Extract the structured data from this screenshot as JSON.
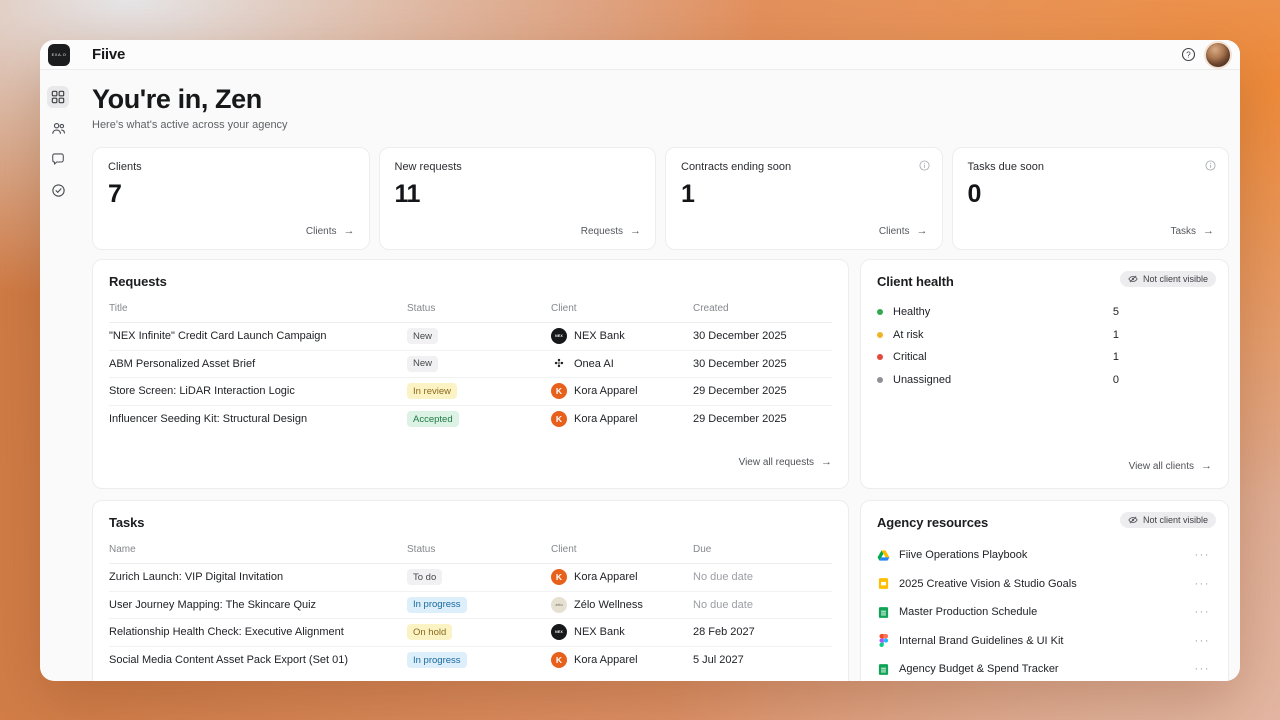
{
  "topbar": {
    "brand": "Fiive",
    "logo_text": "EXA.O"
  },
  "header": {
    "title": "You're in, Zen",
    "subtitle": "Here's what's active across your agency"
  },
  "stats": [
    {
      "label": "Clients",
      "value": "7",
      "link": "Clients",
      "info": false
    },
    {
      "label": "New requests",
      "value": "11",
      "link": "Requests",
      "info": false
    },
    {
      "label": "Contracts ending soon",
      "value": "1",
      "link": "Clients",
      "info": true
    },
    {
      "label": "Tasks due soon",
      "value": "0",
      "link": "Tasks",
      "info": true
    }
  ],
  "requests": {
    "title": "Requests",
    "columns": [
      "Title",
      "Status",
      "Client",
      "Created"
    ],
    "rows": [
      {
        "title": "\"NEX Infinite\" Credit Card Launch Campaign",
        "status": "New",
        "status_type": "neutral",
        "client": "NEX Bank",
        "client_avatar": "nex",
        "date": "30 December 2025"
      },
      {
        "title": "ABM Personalized Asset Brief",
        "status": "New",
        "status_type": "neutral",
        "client": "Onea AI",
        "client_avatar": "onea",
        "date": "30 December 2025"
      },
      {
        "title": "Store Screen: LiDAR Interaction Logic",
        "status": "In review",
        "status_type": "yellow",
        "client": "Kora Apparel",
        "client_avatar": "kora",
        "date": "29 December 2025"
      },
      {
        "title": "Influencer Seeding Kit: Structural Design",
        "status": "Accepted",
        "status_type": "green",
        "client": "Kora Apparel",
        "client_avatar": "kora",
        "date": "29 December 2025"
      }
    ],
    "footer_link": "View all requests"
  },
  "client_health": {
    "title": "Client health",
    "badge": "Not client visible",
    "items": [
      {
        "label": "Healthy",
        "count": "5",
        "color": "#33a852"
      },
      {
        "label": "At risk",
        "count": "1",
        "color": "#f0b429"
      },
      {
        "label": "Critical",
        "count": "1",
        "color": "#e5473c"
      },
      {
        "label": "Unassigned",
        "count": "0",
        "color": "#8e9196"
      }
    ],
    "footer_link": "View all clients"
  },
  "tasks": {
    "title": "Tasks",
    "columns": [
      "Name",
      "Status",
      "Client",
      "Due"
    ],
    "rows": [
      {
        "title": "Zurich Launch: VIP Digital Invitation",
        "status": "To do",
        "status_type": "neutral",
        "client": "Kora Apparel",
        "client_avatar": "kora",
        "date": "No due date",
        "date_muted": true
      },
      {
        "title": "User Journey Mapping: The Skincare Quiz",
        "status": "In progress",
        "status_type": "blue",
        "client": "Zélo Wellness",
        "client_avatar": "zelo",
        "date": "No due date",
        "date_muted": true
      },
      {
        "title": "Relationship Health Check: Executive Alignment",
        "status": "On hold",
        "status_type": "yellow",
        "client": "NEX Bank",
        "client_avatar": "nex",
        "date": "28 Feb 2027",
        "date_muted": false
      },
      {
        "title": "Social Media Content Asset Pack Export (Set 01)",
        "status": "In progress",
        "status_type": "blue",
        "client": "Kora Apparel",
        "client_avatar": "kora",
        "date": "5 Jul 2027",
        "date_muted": false
      }
    ]
  },
  "resources": {
    "title": "Agency resources",
    "badge": "Not client visible",
    "items": [
      {
        "label": "Fiive Operations Playbook",
        "icon": "drive"
      },
      {
        "label": "2025 Creative Vision & Studio Goals",
        "icon": "slides"
      },
      {
        "label": "Master Production Schedule",
        "icon": "sheets"
      },
      {
        "label": "Internal Brand Guidelines & UI Kit",
        "icon": "figma"
      },
      {
        "label": "Agency Budget & Spend Tracker",
        "icon": "sheets"
      }
    ]
  },
  "avatars": {
    "nex": "NEX",
    "kora": "K",
    "zelo": "zélo",
    "onea": "✣"
  },
  "colors": {
    "kora_orange": "#e8611c",
    "nex_black": "#17181a",
    "accent_bg_orange": "#ef8b3a"
  }
}
